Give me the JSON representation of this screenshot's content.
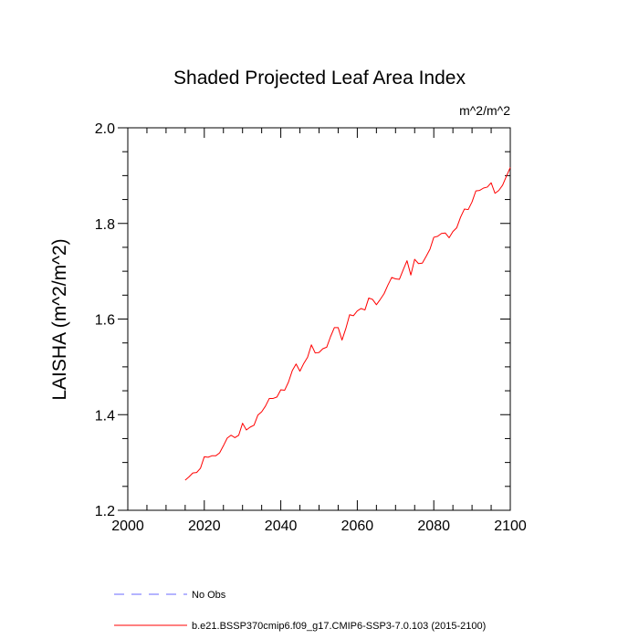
{
  "chart_data": {
    "type": "line",
    "title": "Shaded Projected Leaf Area Index",
    "units": "m^2/m^2",
    "ylabel": "LAISHA  (m^2/m^2)",
    "xlabel": "",
    "xlim": [
      2000,
      2100
    ],
    "ylim": [
      1.2,
      2.0
    ],
    "x_ticks": [
      2000,
      2020,
      2040,
      2060,
      2080,
      2100
    ],
    "x_tick_labels": [
      "2000",
      "2020",
      "2040",
      "2060",
      "2080",
      "2100"
    ],
    "y_ticks": [
      1.2,
      1.4,
      1.6,
      1.8,
      2.0
    ],
    "y_tick_labels": [
      "1.2",
      "1.4",
      "1.6",
      "1.8",
      "2.0"
    ],
    "legend_position": "bottom",
    "legend": [
      {
        "label": "No Obs",
        "color": "#6a6aff",
        "style": "dashed"
      },
      {
        "label": "b.e21.BSSP370cmip6.f09_g17.CMIP6-SSP3-7.0.103 (2015-2100)",
        "color": "#ff0000",
        "style": "solid"
      }
    ],
    "series": [
      {
        "name": "b.e21.BSSP370cmip6.f09_g17.CMIP6-SSP3-7.0.103 (2015-2100)",
        "color": "#ff0000",
        "x": [
          2015,
          2016,
          2017,
          2018,
          2019,
          2020,
          2021,
          2022,
          2023,
          2024,
          2025,
          2026,
          2027,
          2028,
          2029,
          2030,
          2031,
          2032,
          2033,
          2034,
          2035,
          2036,
          2037,
          2038,
          2039,
          2040,
          2041,
          2042,
          2043,
          2044,
          2045,
          2046,
          2047,
          2048,
          2049,
          2050,
          2051,
          2052,
          2053,
          2054,
          2055,
          2056,
          2057,
          2058,
          2059,
          2060,
          2061,
          2062,
          2063,
          2064,
          2065,
          2066,
          2067,
          2068,
          2069,
          2070,
          2071,
          2072,
          2073,
          2074,
          2075,
          2076,
          2077,
          2078,
          2079,
          2080,
          2081,
          2082,
          2083,
          2084,
          2085,
          2086,
          2087,
          2088,
          2089,
          2090,
          2091,
          2092,
          2093,
          2094,
          2095,
          2096,
          2097,
          2098,
          2099,
          2100
        ],
        "values": [
          1.263,
          1.27,
          1.278,
          1.279,
          1.288,
          1.312,
          1.311,
          1.314,
          1.314,
          1.32,
          1.335,
          1.351,
          1.357,
          1.352,
          1.357,
          1.382,
          1.368,
          1.374,
          1.378,
          1.399,
          1.406,
          1.418,
          1.434,
          1.434,
          1.437,
          1.452,
          1.451,
          1.468,
          1.492,
          1.506,
          1.491,
          1.507,
          1.52,
          1.546,
          1.529,
          1.53,
          1.538,
          1.541,
          1.563,
          1.582,
          1.582,
          1.556,
          1.58,
          1.609,
          1.607,
          1.617,
          1.622,
          1.619,
          1.644,
          1.641,
          1.63,
          1.641,
          1.653,
          1.671,
          1.687,
          1.684,
          1.683,
          1.703,
          1.722,
          1.692,
          1.725,
          1.716,
          1.717,
          1.731,
          1.746,
          1.771,
          1.773,
          1.779,
          1.78,
          1.77,
          1.783,
          1.791,
          1.813,
          1.83,
          1.829,
          1.845,
          1.868,
          1.869,
          1.874,
          1.876,
          1.885,
          1.863,
          1.869,
          1.88,
          1.899,
          1.917
        ]
      }
    ]
  }
}
